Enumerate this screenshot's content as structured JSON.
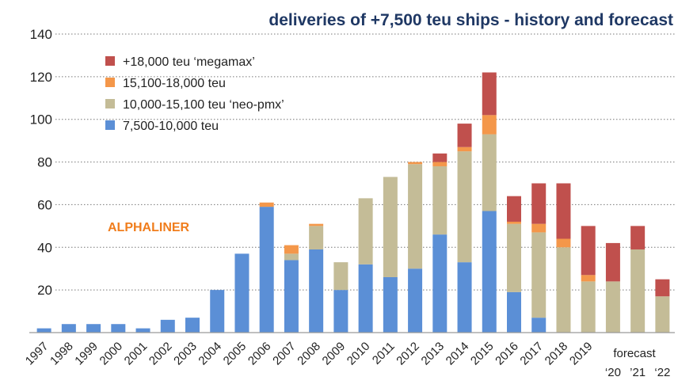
{
  "chart_data": {
    "type": "bar",
    "stacked": true,
    "title": "deliveries of +7,500 teu ships - history and forecast",
    "xlabel": "",
    "ylabel": "",
    "ylim": [
      0,
      140
    ],
    "yticks": [
      20,
      40,
      60,
      80,
      100,
      120,
      140
    ],
    "grid": true,
    "legend_position": "top-left",
    "watermark": "ALPHALINER",
    "categories": [
      "1997",
      "1998",
      "1999",
      "2000",
      "2001",
      "2002",
      "2003",
      "2004",
      "2005",
      "2006",
      "2007",
      "2008",
      "2009",
      "2010",
      "2011",
      "2012",
      "2013",
      "2014",
      "2015",
      "2016",
      "2017",
      "2018",
      "2019",
      "2020",
      "2021",
      "2022"
    ],
    "tick_labels": [
      "1997",
      "1998",
      "1999",
      "2000",
      "2001",
      "2002",
      "2003",
      "2004",
      "2005",
      "2006",
      "2007",
      "2008",
      "2009",
      "2010",
      "2011",
      "2012",
      "2013",
      "2014",
      "2015",
      "2016",
      "2017",
      "2018",
      "2019"
    ],
    "forecast_label": "forecast",
    "forecast_ticks": [
      "‘20",
      "’21",
      "‘22"
    ],
    "series": [
      {
        "name": "7,500-10,000 teu",
        "color": "#5b8fd6",
        "values": [
          2,
          4,
          4,
          4,
          2,
          6,
          7,
          20,
          37,
          59,
          34,
          39,
          20,
          32,
          26,
          30,
          46,
          33,
          57,
          19,
          7,
          0,
          0,
          0,
          0,
          0
        ]
      },
      {
        "name": "10,000-15,100 teu ‘neo-pmx’",
        "color": "#c4bc97",
        "values": [
          0,
          0,
          0,
          0,
          0,
          0,
          0,
          0,
          0,
          0,
          3,
          11,
          13,
          31,
          47,
          49,
          32,
          52,
          36,
          32,
          40,
          40,
          24,
          24,
          39,
          17
        ]
      },
      {
        "name": "15,100-18,000 teu",
        "color": "#f4974a",
        "values": [
          0,
          0,
          0,
          0,
          0,
          0,
          0,
          0,
          0,
          2,
          4,
          1,
          0,
          0,
          0,
          1,
          2,
          2,
          9,
          1,
          4,
          4,
          3,
          0,
          0,
          0
        ]
      },
      {
        "name": "+18,000 teu ‘megamax’",
        "color": "#c0504d",
        "values": [
          0,
          0,
          0,
          0,
          0,
          0,
          0,
          0,
          0,
          0,
          0,
          0,
          0,
          0,
          0,
          0,
          4,
          11,
          20,
          12,
          19,
          26,
          23,
          18,
          11,
          8
        ]
      }
    ],
    "legend_order": [
      "+18,000 teu ‘megamax’",
      "15,100-18,000 teu",
      "10,000-15,100 teu ‘neo-pmx’",
      "7,500-10,000 teu"
    ]
  }
}
